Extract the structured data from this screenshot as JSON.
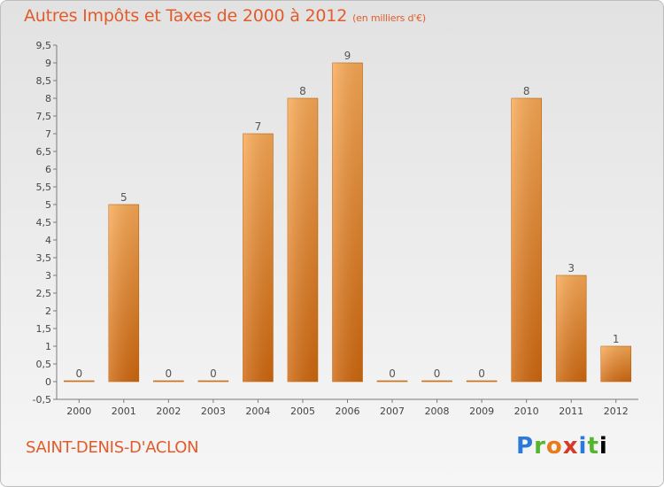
{
  "title": "Autres Impôts et Taxes de 2000 à 2012",
  "subtitle": "(en milliers d'€)",
  "commune": "SAINT-DENIS-D'ACLON",
  "logo": [
    "P",
    "r",
    "o",
    "x",
    "i",
    "t",
    "i"
  ],
  "colors": {
    "bar_light": "#f7a550",
    "bar_dark": "#d06a10",
    "title": "#e25c2b"
  },
  "chart_data": {
    "type": "bar",
    "title": "Autres Impôts et Taxes de 2000 à 2012",
    "subtitle": "(en milliers d'€)",
    "categories": [
      "2000",
      "2001",
      "2002",
      "2003",
      "2004",
      "2005",
      "2006",
      "2007",
      "2008",
      "2009",
      "2010",
      "2011",
      "2012"
    ],
    "values": [
      0,
      5,
      0,
      0,
      7,
      8,
      9,
      0,
      0,
      0,
      8,
      3,
      1
    ],
    "ylim": [
      -0.5,
      9.5
    ],
    "yticks": [
      -0.5,
      0,
      0.5,
      1,
      1.5,
      2,
      2.5,
      3,
      3.5,
      4,
      4.5,
      5,
      5.5,
      6,
      6.5,
      7,
      7.5,
      8,
      8.5,
      9,
      9.5
    ],
    "ytick_labels": [
      "-0,5",
      "0",
      "0,5",
      "1",
      "1,5",
      "2",
      "2,5",
      "3",
      "3,5",
      "4",
      "4,5",
      "5",
      "5,5",
      "6",
      "6,5",
      "7",
      "7,5",
      "8",
      "8,5",
      "9",
      "9,5"
    ],
    "grid": false,
    "xlabel": "",
    "ylabel": ""
  }
}
